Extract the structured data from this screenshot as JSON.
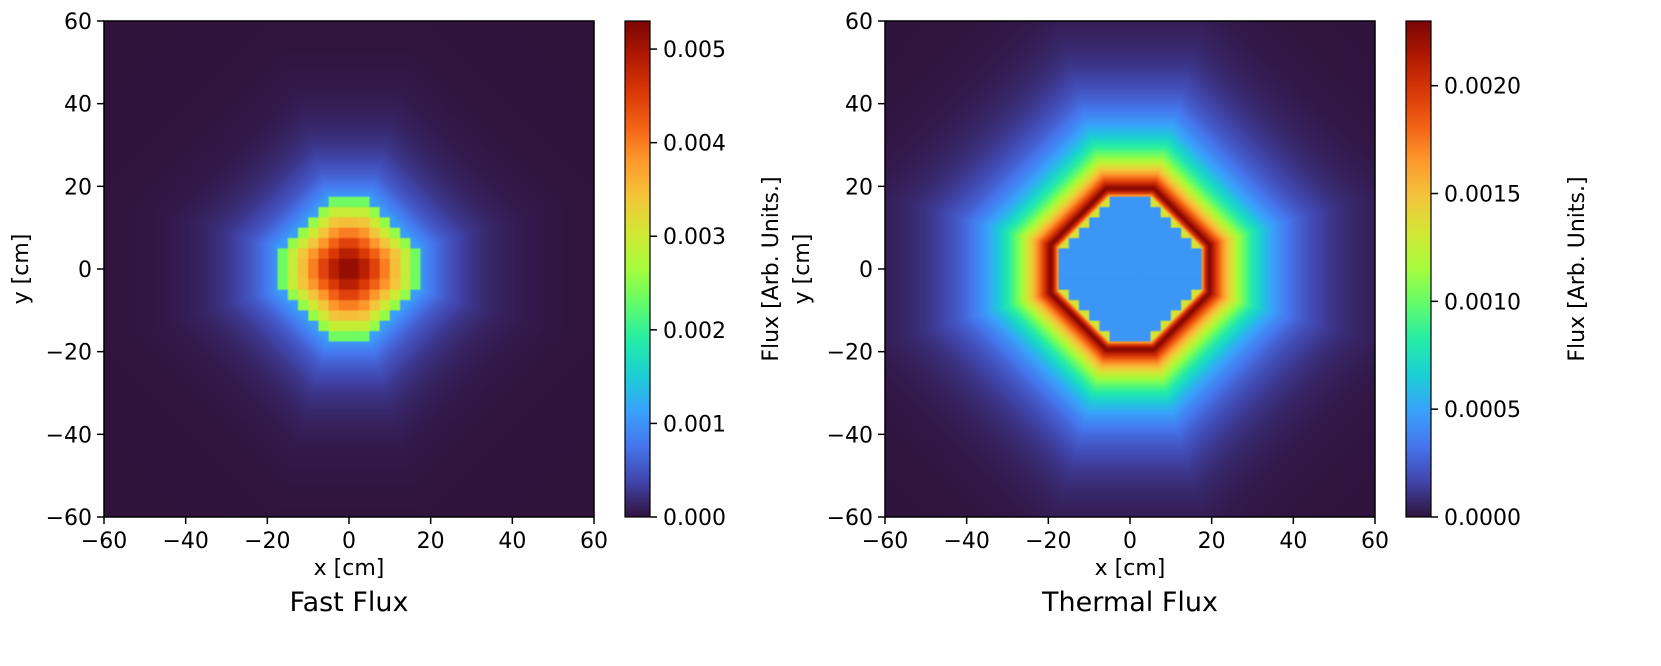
{
  "colors": {
    "background": "#ffffff",
    "axes_frame": "#000000",
    "colormap": [
      "#30123b",
      "#4145ab",
      "#4675ed",
      "#39a2fc",
      "#1bcfd4",
      "#24eca6",
      "#61fc6c",
      "#a4fc3b",
      "#d1e834",
      "#f3c63a",
      "#fe9b2d",
      "#f36315",
      "#d93806",
      "#b11901",
      "#7a0403"
    ]
  },
  "chart_data": [
    {
      "type": "heatmap",
      "title": "Fast Flux",
      "xlabel": "x [cm]",
      "ylabel": "y [cm]",
      "xlim": [
        -60,
        60
      ],
      "ylim": [
        -60,
        60
      ],
      "xticks": [
        -60,
        -40,
        -20,
        0,
        20,
        40,
        60
      ],
      "yticks": [
        -60,
        -40,
        -20,
        0,
        20,
        40,
        60
      ],
      "xtick_labels": [
        "−60",
        "−40",
        "−20",
        "0",
        "20",
        "40",
        "60"
      ],
      "ytick_labels": [
        "−60",
        "−40",
        "−20",
        "0",
        "20",
        "40",
        "60"
      ],
      "colormap": "turbo",
      "colorbar": {
        "label": "Flux [Arb. Units.]",
        "vmin": 0.0,
        "vmax": 0.0053,
        "ticks": [
          0.0,
          0.001,
          0.002,
          0.003,
          0.004,
          0.005
        ],
        "tick_labels": [
          "0.000",
          "0.001",
          "0.002",
          "0.003",
          "0.004",
          "0.005"
        ]
      },
      "field": {
        "core_shape": "octagon",
        "core_half_width_cm": 16.5,
        "center_value": 0.0053,
        "core_edge_value": 0.0023,
        "outside_edge_value": 0.0012,
        "outside_decay_length_cm": 9,
        "grid_cell_cm": 2.5
      }
    },
    {
      "type": "heatmap",
      "title": "Thermal Flux",
      "xlabel": "x [cm]",
      "ylabel": "y [cm]",
      "xlim": [
        -60,
        60
      ],
      "ylim": [
        -60,
        60
      ],
      "xticks": [
        -60,
        -40,
        -20,
        0,
        20,
        40,
        60
      ],
      "yticks": [
        -60,
        -40,
        -20,
        0,
        20,
        40,
        60
      ],
      "xtick_labels": [
        "−60",
        "−40",
        "−20",
        "0",
        "20",
        "40",
        "60"
      ],
      "ytick_labels": [
        "−60",
        "−40",
        "−20",
        "0",
        "20",
        "40",
        "60"
      ],
      "colormap": "turbo",
      "colorbar": {
        "label": "Flux [Arb. Units.]",
        "vmin": 0.0,
        "vmax": 0.0023,
        "ticks": [
          0.0,
          0.0005,
          0.001,
          0.0015,
          0.002
        ],
        "tick_labels": [
          "0.0000",
          "0.0005",
          "0.0010",
          "0.0015",
          "0.0020"
        ]
      },
      "field": {
        "core_shape": "octagon",
        "core_half_width_cm": 16.5,
        "core_value": 0.00045,
        "peak_value": 0.0023,
        "peak_distance_outside_core_cm": 3,
        "rise_length_cm": 1.5,
        "outside_decay_length_cm": 10,
        "grid_cell_cm": 2.5
      }
    }
  ]
}
